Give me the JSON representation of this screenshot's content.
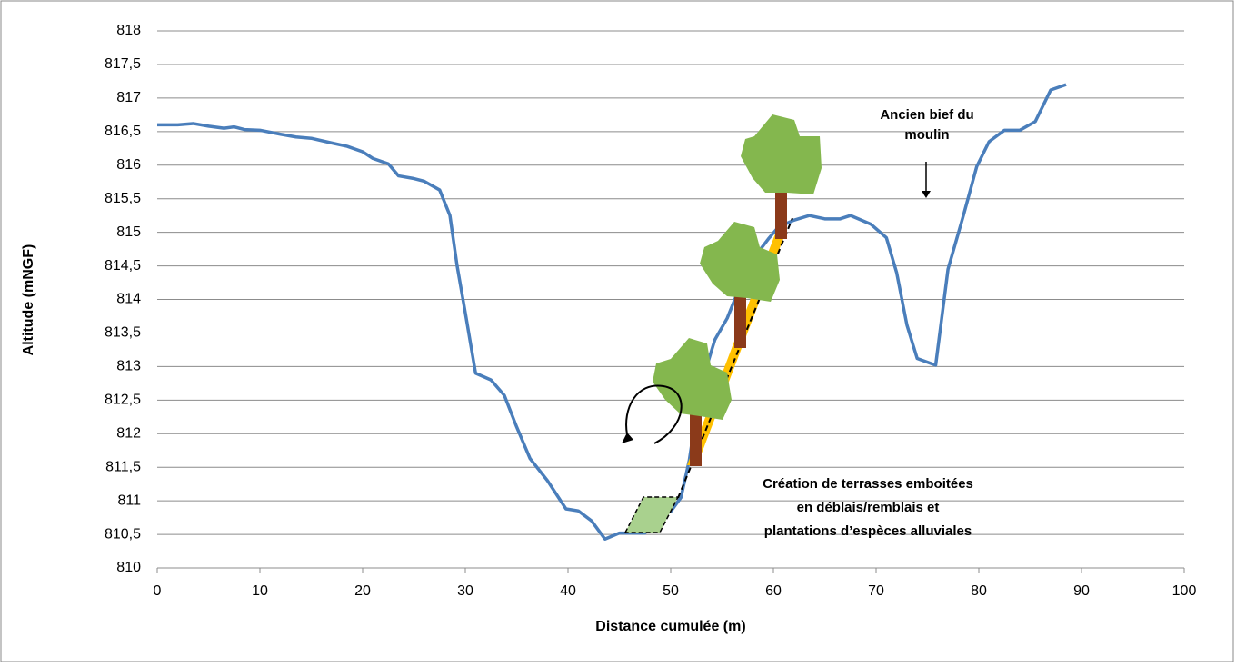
{
  "chart_data": {
    "type": "line",
    "y_label": "Altitude (mNGF)",
    "x_label": "Distance cumulée (m)",
    "color": "#4a7ebb",
    "grid": true,
    "xlim": [
      0,
      100
    ],
    "xticks": [
      0,
      10,
      20,
      30,
      40,
      50,
      60,
      70,
      80,
      90,
      100
    ],
    "ylim": [
      810,
      818
    ],
    "yticks": [
      810,
      {
        "value": 810.5,
        "label": "810,5"
      },
      811,
      {
        "value": 811.5,
        "label": "811,5"
      },
      812,
      {
        "value": 812.5,
        "label": "812,5"
      },
      813,
      {
        "value": 813.5,
        "label": "813,5"
      },
      814,
      {
        "value": 814.5,
        "label": "814,5"
      },
      815,
      {
        "value": 815.5,
        "label": "815,5"
      },
      816,
      {
        "value": 816.5,
        "label": "816,5"
      },
      817,
      {
        "value": 817.5,
        "label": "817,5"
      },
      818
    ],
    "x": [
      0,
      2,
      3.5,
      5,
      6.5,
      7.5,
      8.5,
      10,
      12,
      13.5,
      15,
      17,
      18.5,
      20,
      21,
      22.5,
      23.5,
      25,
      26,
      27.5,
      28.5,
      29.2,
      30,
      31,
      32.5,
      33.8,
      35,
      36.3,
      38,
      39.8,
      41,
      42.3,
      43.6,
      45,
      46.2,
      47.5,
      48.8,
      50,
      51,
      51.8,
      52.5,
      53.3,
      54.3,
      55.5,
      56.5,
      58,
      59.5,
      60.5,
      62,
      63.5,
      65,
      66.5,
      67.5,
      69.5,
      71,
      72,
      73,
      74,
      75.8,
      77,
      78.5,
      79.8,
      81,
      82.5,
      84,
      85.5,
      87,
      88.5
    ],
    "values": [
      816.6,
      816.6,
      816.62,
      816.58,
      816.55,
      816.57,
      816.53,
      816.52,
      816.46,
      816.42,
      816.4,
      816.33,
      816.28,
      816.2,
      816.1,
      816.02,
      815.84,
      815.8,
      815.76,
      815.63,
      815.25,
      814.5,
      813.8,
      812.9,
      812.8,
      812.57,
      812.1,
      811.63,
      811.3,
      810.88,
      810.85,
      810.7,
      810.43,
      810.52,
      810.52,
      810.52,
      810.83,
      810.84,
      811.05,
      811.6,
      812.3,
      812.9,
      813.4,
      813.72,
      814.1,
      814.6,
      814.9,
      815.08,
      815.18,
      815.25,
      815.2,
      815.2,
      815.25,
      815.12,
      814.92,
      814.4,
      813.62,
      813.12,
      813.02,
      814.45,
      815.25,
      815.98,
      816.35,
      816.52,
      816.52,
      816.65,
      817.12,
      817.2
    ],
    "annotations": [
      {
        "lines": [
          "Ancien bief du",
          "moulin"
        ]
      },
      {
        "lines": [
          "Création de terrasses emboitées",
          "en déblais/remblais et",
          "plantations d’espèces alluviales"
        ]
      }
    ]
  }
}
